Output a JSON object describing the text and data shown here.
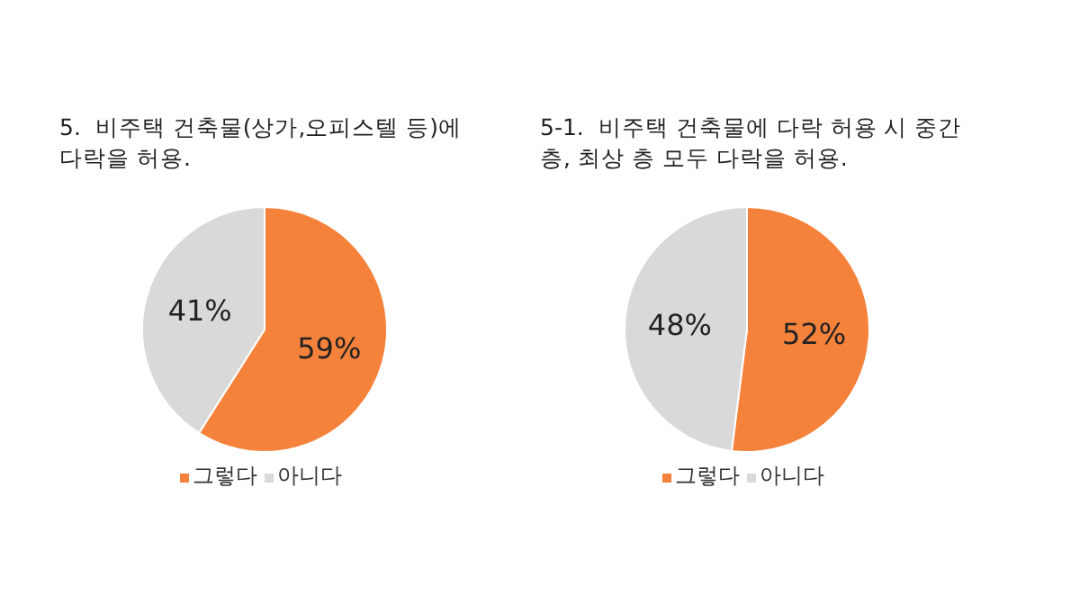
{
  "chart_data": [
    {
      "type": "pie",
      "title": "5.  비주택 건축물(상가,오피스텔 등)에 다락을 허용.",
      "categories": [
        "그렇다",
        "아니다"
      ],
      "values": [
        59,
        41
      ],
      "value_labels": [
        "59%",
        "41%"
      ],
      "colors": [
        "#f5823b",
        "#d9d9d9"
      ],
      "legend": "bottom"
    },
    {
      "type": "pie",
      "title": "5-1.  비주택 건축물에 다락 허용 시 중간 층, 최상 층 모두 다락을 허용.",
      "categories": [
        "그렇다",
        "아니다"
      ],
      "values": [
        52,
        48
      ],
      "value_labels": [
        "52%",
        "48%"
      ],
      "colors": [
        "#f5823b",
        "#d9d9d9"
      ],
      "legend": "bottom"
    }
  ]
}
